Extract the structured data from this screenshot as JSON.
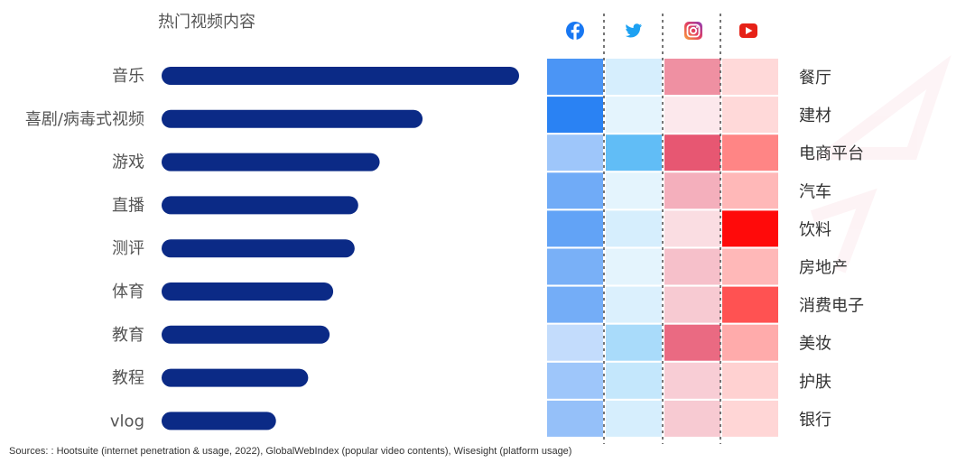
{
  "chart_data": [
    {
      "type": "bar",
      "orientation": "horizontal",
      "title": "热门视频内容",
      "categories": [
        "音乐",
        "喜剧/病毒式视频",
        "游戏",
        "直播",
        "测评",
        "体育",
        "教育",
        "教程",
        "vlog"
      ],
      "values": [
        100,
        73,
        61,
        55,
        54,
        48,
        47,
        41,
        32
      ],
      "bar_color": "#0b2a86",
      "xlim": [
        0,
        100
      ]
    },
    {
      "type": "heatmap",
      "columns": [
        {
          "platform": "Facebook",
          "icon": "facebook-icon",
          "color": "#1877f2"
        },
        {
          "platform": "Twitter",
          "icon": "twitter-icon",
          "color": "#1da1f2"
        },
        {
          "platform": "Instagram",
          "icon": "instagram-icon",
          "color": "#e4405f"
        },
        {
          "platform": "YouTube",
          "icon": "youtube-icon",
          "color": "#ff0000"
        }
      ],
      "rows": [
        "餐厅",
        "建材",
        "电商平台",
        "汽车",
        "饮料",
        "房地产",
        "消费电子",
        "美妆",
        "护肤",
        "银行"
      ],
      "values": [
        [
          0.78,
          0.18,
          0.58,
          0.15
        ],
        [
          0.92,
          0.12,
          0.12,
          0.15
        ],
        [
          0.42,
          0.7,
          0.88,
          0.48
        ],
        [
          0.62,
          0.12,
          0.42,
          0.28
        ],
        [
          0.68,
          0.18,
          0.18,
          0.96
        ],
        [
          0.58,
          0.12,
          0.33,
          0.28
        ],
        [
          0.6,
          0.16,
          0.28,
          0.68
        ],
        [
          0.26,
          0.38,
          0.78,
          0.33
        ],
        [
          0.42,
          0.26,
          0.26,
          0.18
        ],
        [
          0.46,
          0.18,
          0.28,
          0.16
        ]
      ],
      "scale": [
        0,
        1
      ]
    }
  ],
  "source_text": "Sources: : Hootsuite (internet penetration & usage, 2022), GlobalWebIndex (popular video contents), Wisesight (platform usage)"
}
